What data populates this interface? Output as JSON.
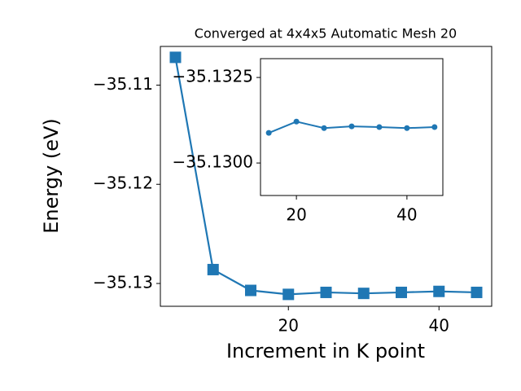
{
  "chart_data": [
    {
      "type": "line",
      "title": "Converged at 4x4x5 Automatic Mesh 20",
      "x_label": "Increment in K point",
      "y_label": "Energy (eV)",
      "marker": "square",
      "series": [
        {
          "color": "#1f77b4",
          "x": [
            5,
            10,
            15,
            20,
            25,
            30,
            35,
            40,
            45
          ],
          "values": [
            -35.1072,
            -35.1286,
            -35.1307,
            -35.1311,
            -35.1309,
            -35.131,
            -35.1309,
            -35.1308,
            -35.1309
          ]
        }
      ],
      "xlim": [
        3,
        47
      ],
      "ylim": [
        -35.1323,
        -35.1061
      ],
      "xticks": [
        20,
        40
      ],
      "yticks": [
        {
          "value": -35.13,
          "label": "−35.13"
        },
        {
          "value": -35.12,
          "label": "−35.12"
        },
        {
          "value": -35.11,
          "label": "−35.11"
        }
      ]
    },
    {
      "type": "line",
      "marker": "circle",
      "series": [
        {
          "color": "#1f77b4",
          "x": [
            15,
            20,
            25,
            30,
            35,
            40,
            45
          ],
          "values": [
            -35.13088,
            -35.13121,
            -35.13102,
            -35.13107,
            -35.13105,
            -35.13102,
            -35.13105
          ]
        }
      ],
      "xlim": [
        13.5,
        46.5
      ],
      "ylim": [
        -35.12905,
        -35.13305
      ],
      "xticks": [
        20,
        40
      ],
      "yticks": [
        {
          "value": -35.13,
          "label": "−35.1300"
        },
        {
          "value": -35.1325,
          "label": "−35.1325"
        }
      ]
    }
  ]
}
